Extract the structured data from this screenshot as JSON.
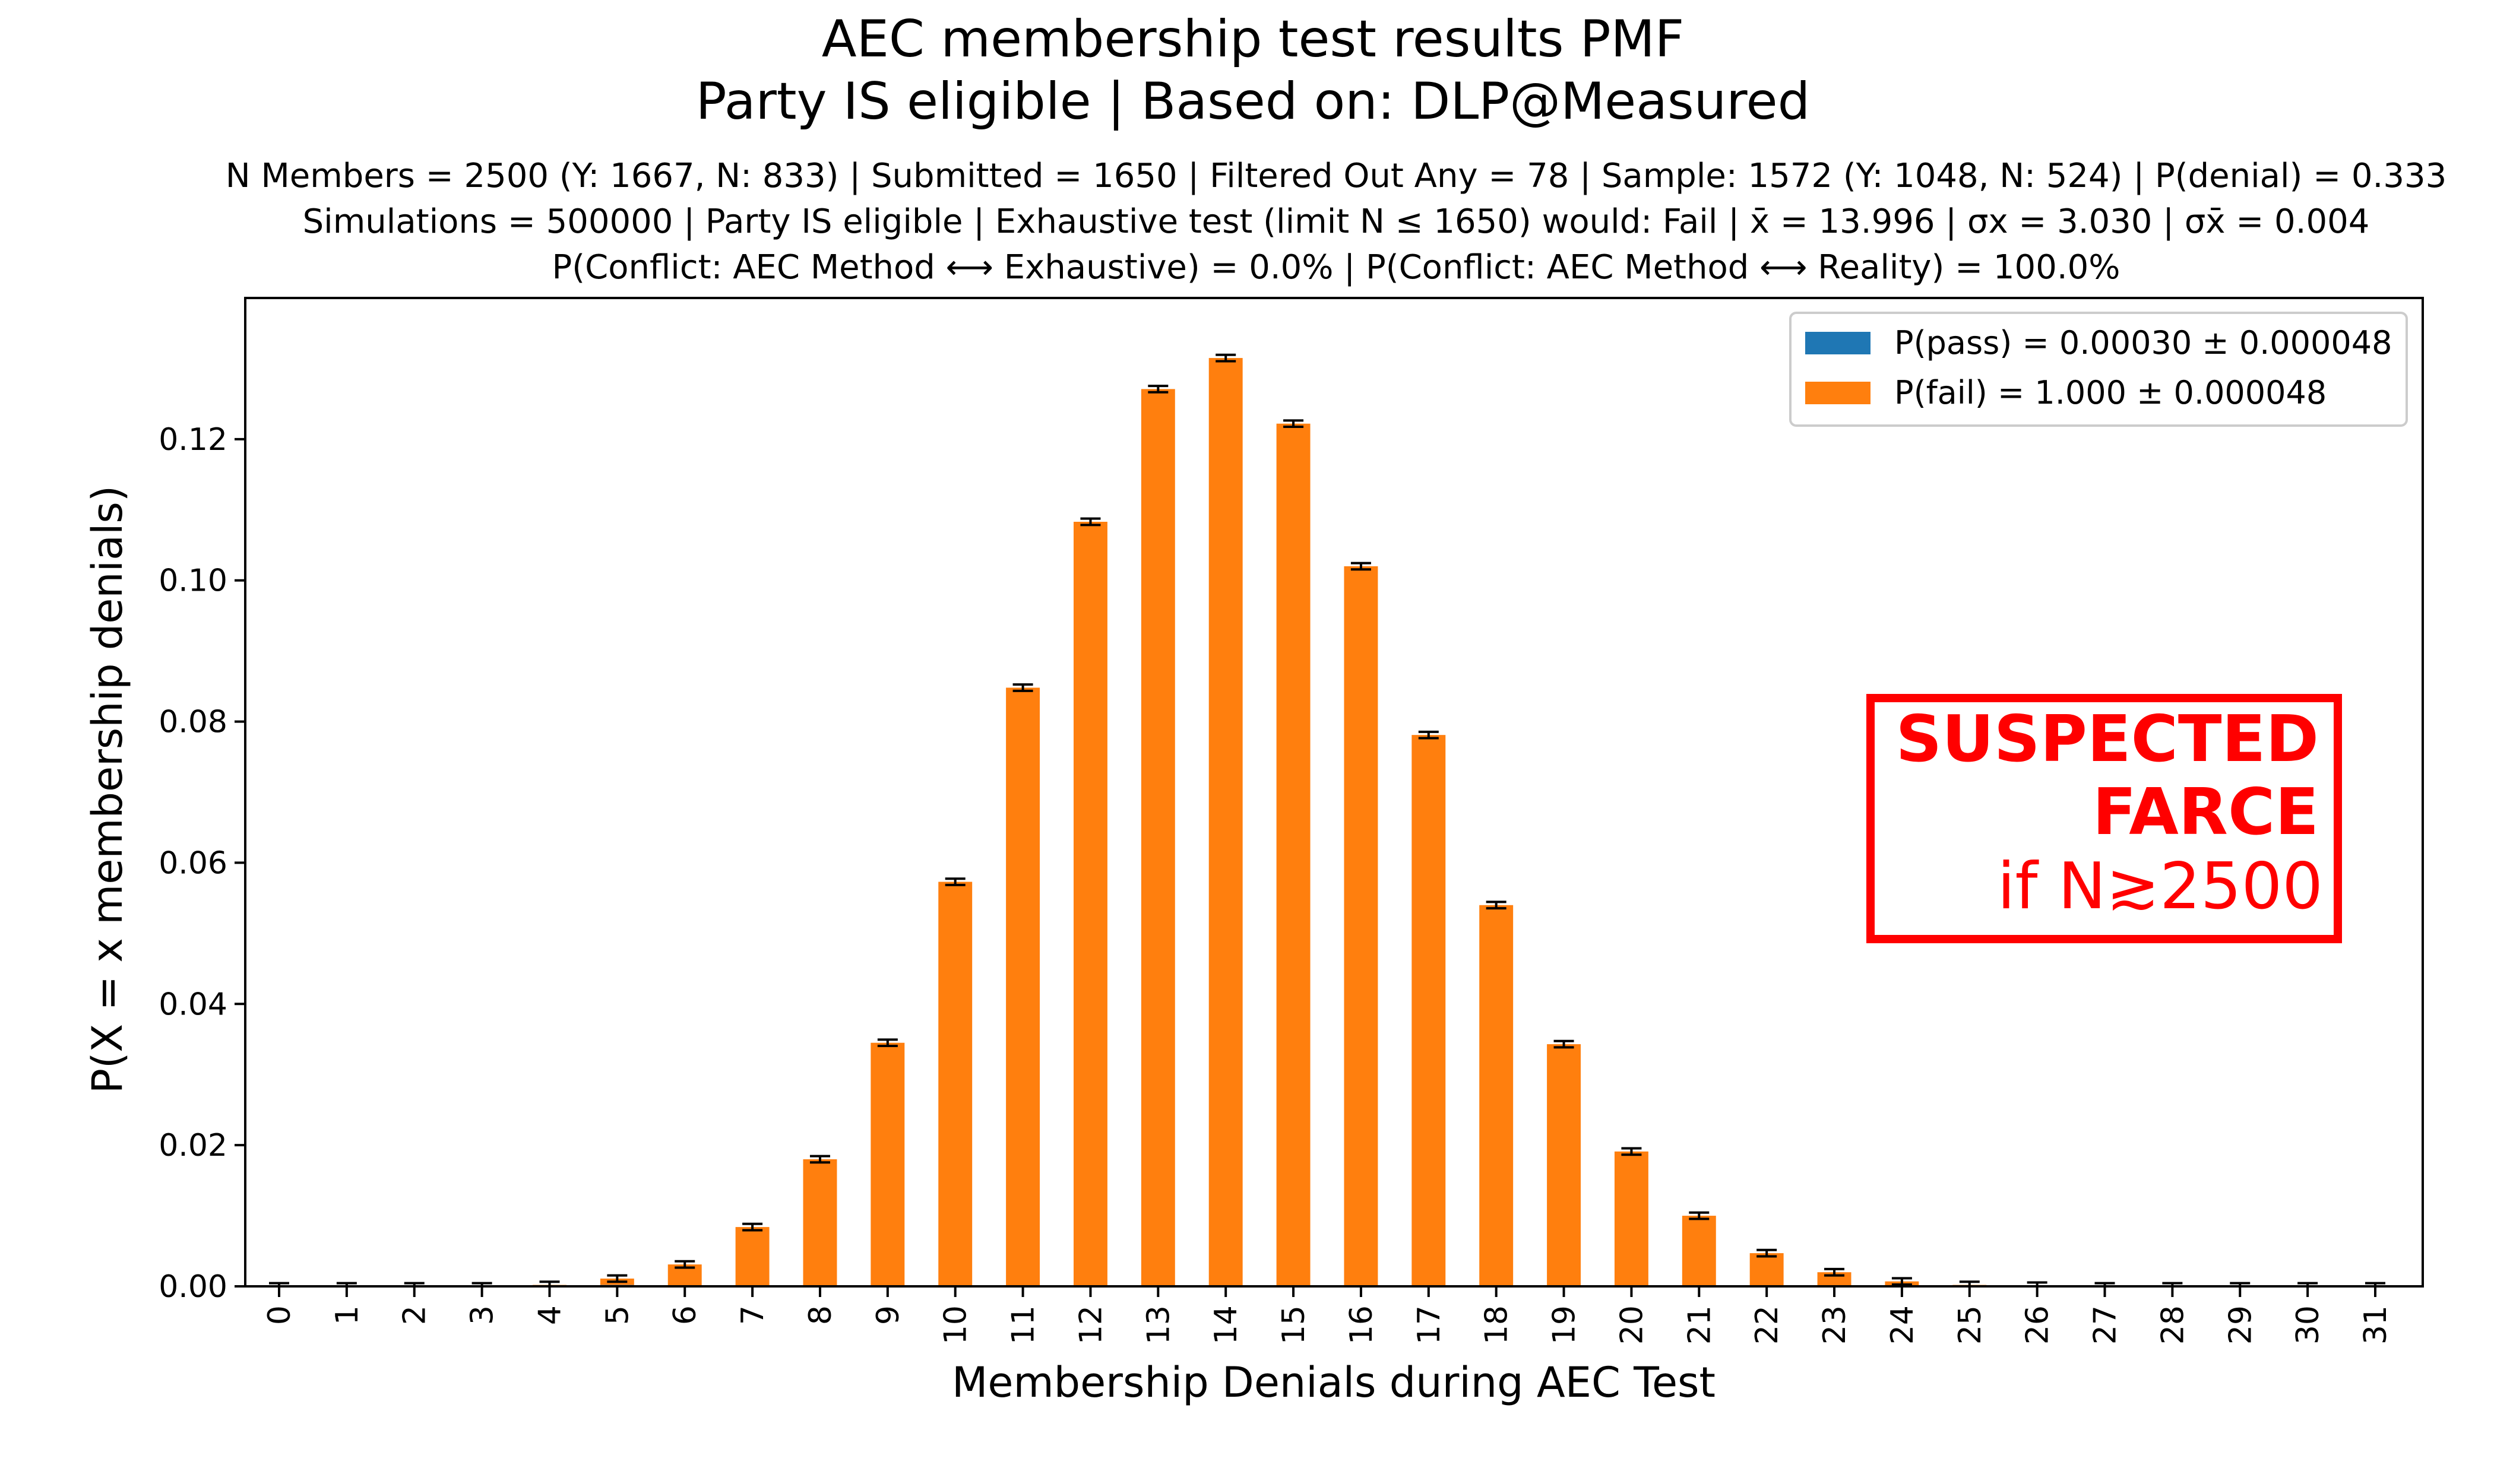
{
  "chart_data": {
    "type": "bar",
    "title_lines": [
      "AEC membership test results PMF",
      "Party IS eligible | Based on: DLP@Measured"
    ],
    "subtitle_lines": [
      "N Members = 2500 (Y: 1667, N: 833) | Submitted = 1650 | Filtered Out Any = 78 | Sample: 1572 (Y: 1048, N: 524) | P(denial) = 0.333",
      "Simulations = 500000 | Party IS eligible | Exhaustive test (limit N ≤ 1650) would: Fail | x̄ = 13.996 | σx = 3.030 | σx̄ = 0.004",
      "P(Conflict: AEC Method ⟷ Exhaustive) = 0.0% | P(Conflict: AEC Method ⟷ Reality) = 100.0%"
    ],
    "xlabel": "Membership Denials during AEC Test",
    "ylabel": "P(X = x membership denials)",
    "categories": [
      "0",
      "1",
      "2",
      "3",
      "4",
      "5",
      "6",
      "7",
      "8",
      "9",
      "10",
      "11",
      "12",
      "13",
      "14",
      "15",
      "16",
      "17",
      "18",
      "19",
      "20",
      "21",
      "22",
      "23",
      "24",
      "25",
      "26",
      "27",
      "28",
      "29",
      "30",
      "31"
    ],
    "series": [
      {
        "name": "P(pass) = 0.00030 ± 0.000048",
        "color": "#1f77b4",
        "values": [
          0,
          0,
          0,
          0,
          0.0001,
          0.0002,
          0,
          0,
          0,
          0,
          0,
          0,
          0,
          0,
          0,
          0,
          0,
          0,
          0,
          0,
          0,
          0,
          0,
          0,
          0,
          0,
          0,
          0,
          0,
          0,
          0,
          0
        ]
      },
      {
        "name": "P(fail) = 1.000 ± 0.000048",
        "color": "#ff7f0e",
        "values": [
          0,
          0,
          0,
          0,
          0.0001,
          0.0009,
          0.0031,
          0.0084,
          0.018,
          0.0345,
          0.0573,
          0.0848,
          0.1083,
          0.1271,
          0.1315,
          0.1222,
          0.102,
          0.0781,
          0.054,
          0.0343,
          0.0191,
          0.01,
          0.0047,
          0.002,
          0.0007,
          0.0002,
          0.0001,
          0,
          0,
          0,
          0,
          0
        ]
      }
    ],
    "ylim": [
      0,
      0.14
    ],
    "yticks": [
      "0.00",
      "0.02",
      "0.04",
      "0.06",
      "0.08",
      "0.10",
      "0.12"
    ],
    "legend_position": "top-right",
    "grid": false
  },
  "annotation": {
    "lines": [
      "SUSPECTED",
      "FARCE",
      "if N≳2500"
    ],
    "color": "#ff0000"
  }
}
